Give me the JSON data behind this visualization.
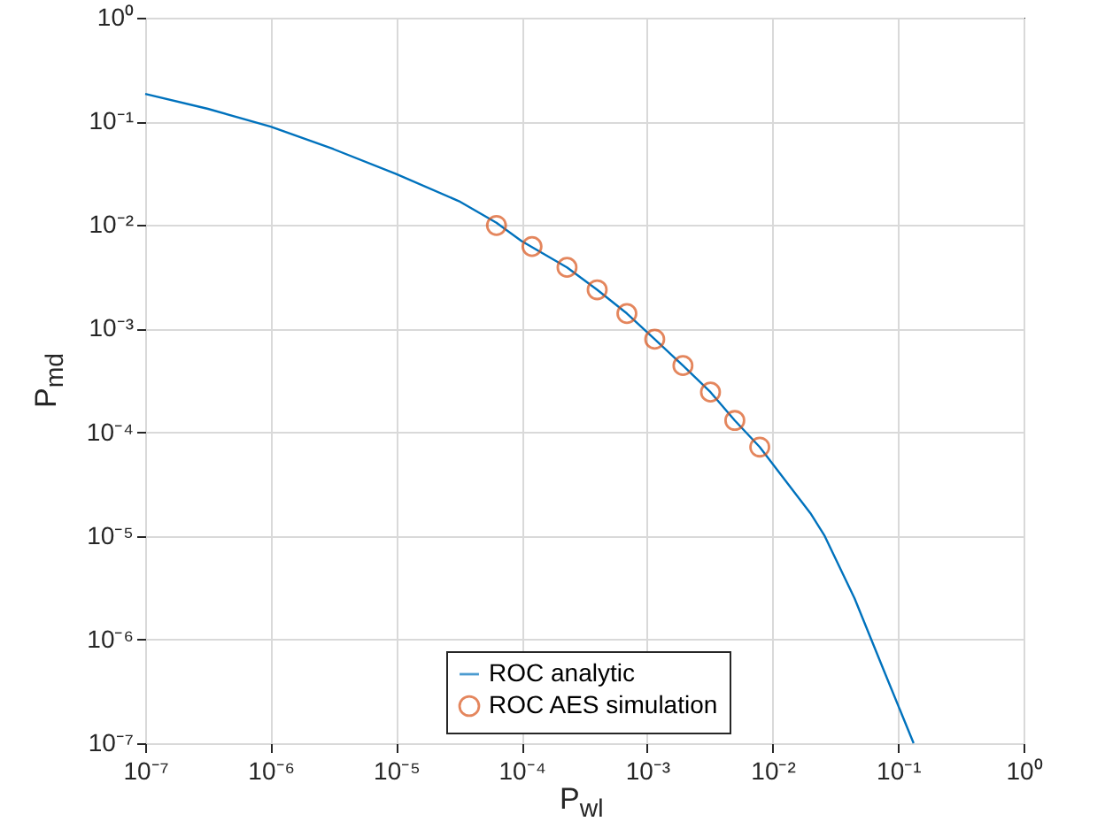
{
  "chart_data": {
    "type": "line",
    "xlabel": "P$_{wl}$",
    "ylabel": "P$_{md}$",
    "log": "xy",
    "grid": true,
    "legend": "bottom",
    "xlim": [
      1e-07,
      1
    ],
    "ylim": [
      1e-07,
      1
    ],
    "xticks": [
      {
        "value": 1e-07,
        "label": "10⁻⁷"
      },
      {
        "value": 1e-06,
        "label": "10⁻⁶"
      },
      {
        "value": 1e-05,
        "label": "10⁻⁵"
      },
      {
        "value": 0.0001,
        "label": "10⁻⁴"
      },
      {
        "value": 0.001,
        "label": "10⁻³"
      },
      {
        "value": 0.01,
        "label": "10⁻²"
      },
      {
        "value": 0.1,
        "label": "10⁻¹"
      },
      {
        "value": 1,
        "label": "10⁰"
      }
    ],
    "yticks": [
      {
        "value": 1e-07,
        "label": "10⁻⁷"
      },
      {
        "value": 1e-06,
        "label": "10⁻⁶"
      },
      {
        "value": 1e-05,
        "label": "10⁻⁵"
      },
      {
        "value": 0.0001,
        "label": "10⁻⁴"
      },
      {
        "value": 0.001,
        "label": "10⁻³"
      },
      {
        "value": 0.01,
        "label": "10⁻²"
      },
      {
        "value": 0.1,
        "label": "10⁻¹"
      },
      {
        "value": 1,
        "label": "10⁰"
      }
    ],
    "series": [
      {
        "name": "ROC analytic",
        "type": "line",
        "color": "#0072bd",
        "marker": "none",
        "line_style": "solid",
        "x": [
          1e-07,
          3.16e-07,
          1e-06,
          3.16e-06,
          1e-05,
          3.16e-05,
          6.3e-05,
          0.0001,
          0.00023,
          0.0004,
          0.00069,
          0.00115,
          0.00193,
          0.0032,
          0.005,
          0.0079,
          0.02,
          0.026,
          0.045,
          0.08,
          0.133
        ],
        "values": [
          0.184,
          0.132,
          0.089,
          0.054,
          0.031,
          0.017,
          0.0105,
          0.007,
          0.0039,
          0.00237,
          0.0014,
          0.00079,
          0.00044,
          0.000244,
          0.00013,
          7.2e-05,
          1.66e-05,
          1e-05,
          2.5e-06,
          4.5e-07,
          1e-07
        ]
      },
      {
        "name": "ROC AES simulation",
        "type": "scatter",
        "color": "#d95319",
        "marker": "circle",
        "x": [
          6.3e-05,
          0.000121,
          0.00023,
          0.0004,
          0.00069,
          0.00115,
          0.00193,
          0.0032,
          0.005,
          0.0079
        ],
        "values": [
          0.0099,
          0.0062,
          0.0039,
          0.00237,
          0.0014,
          0.00079,
          0.00044,
          0.000244,
          0.00013,
          7.2e-05
        ]
      }
    ]
  }
}
